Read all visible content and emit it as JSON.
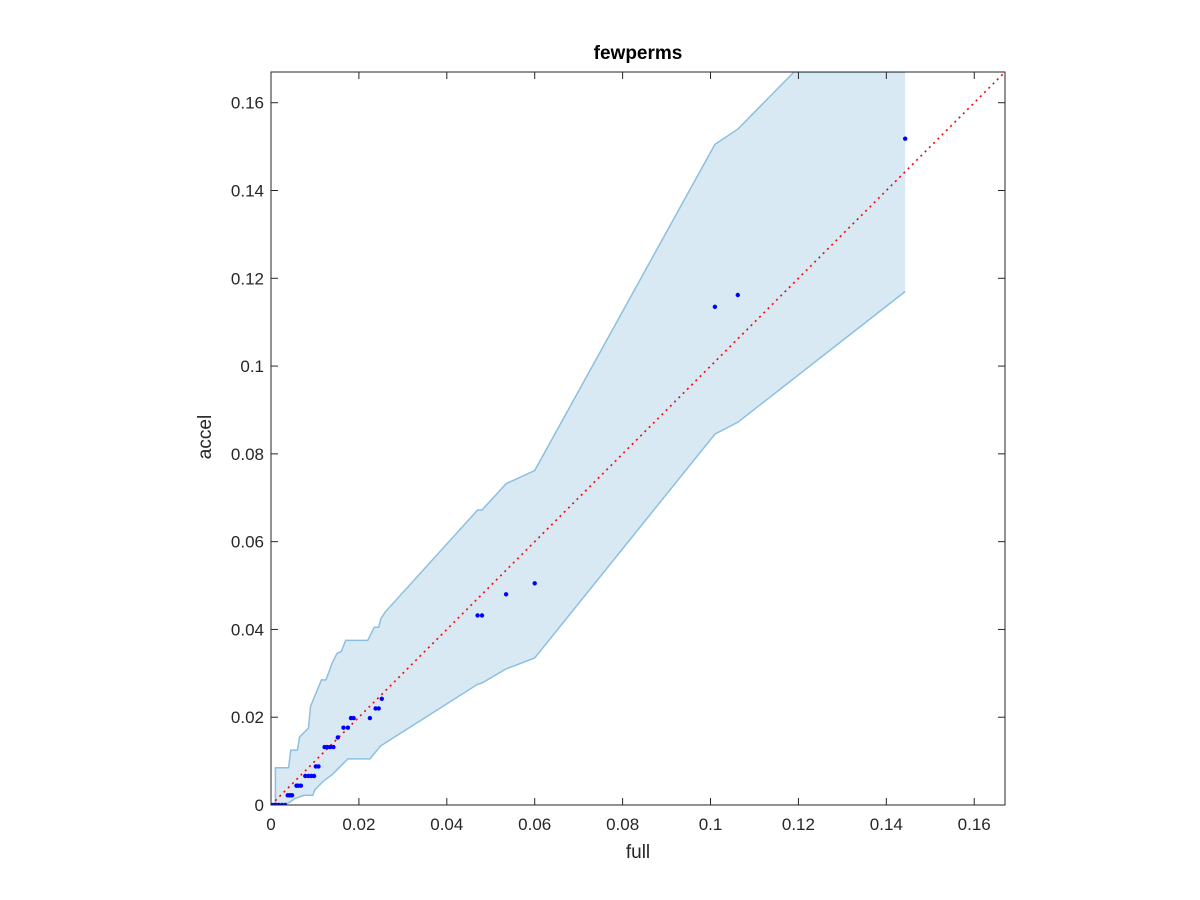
{
  "chart_data": {
    "type": "scatter",
    "title": "fewperms",
    "xlabel": "full",
    "ylabel": "accel",
    "xlim": [
      0,
      0.167
    ],
    "ylim": [
      0,
      0.167
    ],
    "grid": false,
    "x_ticks": [
      0,
      0.02,
      0.04,
      0.06,
      0.08,
      0.1,
      0.12,
      0.14,
      0.16
    ],
    "y_ticks": [
      0,
      0.02,
      0.04,
      0.06,
      0.08,
      0.1,
      0.12,
      0.14,
      0.16
    ],
    "x_tick_labels": [
      "0",
      "0.02",
      "0.04",
      "0.06",
      "0.08",
      "0.1",
      "0.12",
      "0.14",
      "0.16"
    ],
    "y_tick_labels": [
      "0",
      "0.02",
      "0.04",
      "0.06",
      "0.08",
      "0.1",
      "0.12",
      "0.14",
      "0.16"
    ],
    "colors": {
      "points": "#0000ff",
      "reference_line": "#ff0000",
      "band_fill": "#d9e9f4",
      "band_edge": "#8cc0df",
      "axes": "#262626"
    },
    "points": {
      "x": [
        0.0003,
        0.0008,
        0.0012,
        0.0018,
        0.0025,
        0.0032,
        0.0038,
        0.0042,
        0.0045,
        0.0048,
        0.0058,
        0.0062,
        0.0068,
        0.0078,
        0.0085,
        0.0092,
        0.0098,
        0.0102,
        0.0108,
        0.0122,
        0.0128,
        0.0135,
        0.0142,
        0.0152,
        0.0165,
        0.0175,
        0.0182,
        0.0188,
        0.0225,
        0.0238,
        0.0245,
        0.0252,
        0.047,
        0.048,
        0.0535,
        0.06,
        0.101,
        0.1062,
        0.1443
      ],
      "y": [
        0.0,
        0.0,
        0.0,
        0.0,
        0.0,
        0.0,
        0.0022,
        0.0022,
        0.0022,
        0.0022,
        0.0044,
        0.0044,
        0.0044,
        0.0066,
        0.0066,
        0.0066,
        0.0066,
        0.0088,
        0.0088,
        0.0132,
        0.0132,
        0.0132,
        0.0132,
        0.0154,
        0.0176,
        0.0176,
        0.0198,
        0.0198,
        0.0198,
        0.022,
        0.022,
        0.0242,
        0.0432,
        0.0432,
        0.048,
        0.0505,
        0.1135,
        0.1162,
        0.1518
      ]
    },
    "reference_line": {
      "x": [
        0,
        0.167
      ],
      "y": [
        0,
        0.167
      ],
      "style": "dotted"
    },
    "band": {
      "upper": {
        "x": [
          0,
          0.001,
          0.001,
          0.004,
          0.0045,
          0.006,
          0.0065,
          0.0085,
          0.009,
          0.0115,
          0.0125,
          0.014,
          0.015,
          0.016,
          0.017,
          0.0185,
          0.022,
          0.0235,
          0.0245,
          0.025,
          0.026,
          0.047,
          0.048,
          0.0535,
          0.06,
          0.101,
          0.1062,
          0.119,
          0.1443
        ],
        "y": [
          0,
          0,
          0.0085,
          0.0085,
          0.0125,
          0.0125,
          0.0155,
          0.0175,
          0.0225,
          0.0285,
          0.0285,
          0.0325,
          0.0345,
          0.035,
          0.0375,
          0.0375,
          0.0375,
          0.0405,
          0.0405,
          0.0425,
          0.044,
          0.0672,
          0.0672,
          0.0732,
          0.0762,
          0.1505,
          0.154,
          0.167,
          0.167
        ]
      },
      "lower": {
        "x": [
          0,
          0.0025,
          0.004,
          0.0055,
          0.0075,
          0.0095,
          0.01,
          0.012,
          0.014,
          0.0155,
          0.0175,
          0.0195,
          0.0225,
          0.025,
          0.047,
          0.048,
          0.0535,
          0.06,
          0.101,
          0.1062,
          0.1443
        ],
        "y": [
          0,
          0,
          0.0005,
          0.0015,
          0.0022,
          0.0022,
          0.0035,
          0.0055,
          0.007,
          0.0085,
          0.0105,
          0.0105,
          0.0105,
          0.0135,
          0.0275,
          0.0278,
          0.031,
          0.0335,
          0.0845,
          0.0872,
          0.117
        ]
      }
    }
  }
}
